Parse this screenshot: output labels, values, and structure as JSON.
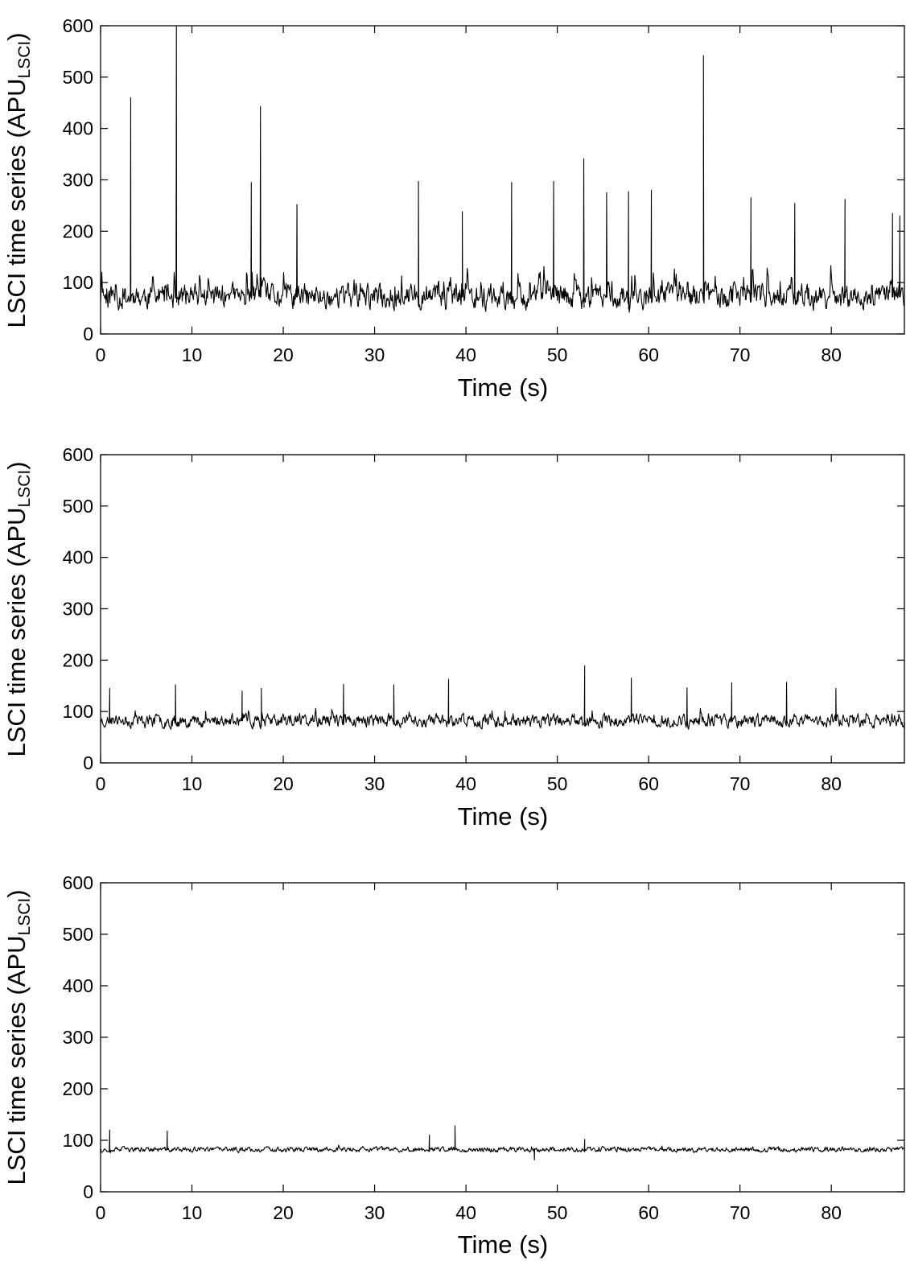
{
  "chart_data": [
    {
      "type": "line",
      "xlabel": "Time (s)",
      "ylabel": {
        "main": "LSCI time series (APU",
        "subscript": "LSCI",
        "close": ")"
      },
      "xlim": [
        0,
        88
      ],
      "ylim": [
        0,
        600
      ],
      "xticks": [
        "0",
        "10",
        "20",
        "30",
        "40",
        "50",
        "60",
        "70",
        "80"
      ],
      "yticks": [
        "0",
        "100",
        "200",
        "300",
        "400",
        "500",
        "600"
      ],
      "grid": false,
      "line_color": "#000000",
      "noise": {
        "baseline": 72,
        "spread": 38,
        "spike_rate": 0.1,
        "spike_size": 75,
        "seed": 11
      },
      "series": [
        {
          "x": [
            3.3,
            8.3,
            16.5,
            17.5,
            21.5,
            34.8,
            39.6,
            45,
            49.6,
            52.9,
            55.4,
            57.8,
            60.3,
            66,
            71.2,
            76,
            81.5,
            86.7,
            87.5
          ],
          "values": [
            460,
            600,
            295,
            443,
            252,
            297,
            238,
            295,
            297,
            341,
            275,
            277,
            280,
            542,
            265,
            254,
            262,
            235,
            230
          ]
        }
      ]
    },
    {
      "type": "line",
      "xlabel": "Time (s)",
      "ylabel": {
        "main": "LSCI time series (APU",
        "subscript": "LSCI",
        "close": ")"
      },
      "xlim": [
        0,
        88
      ],
      "ylim": [
        0,
        600
      ],
      "xticks": [
        "0",
        "10",
        "20",
        "30",
        "40",
        "50",
        "60",
        "70",
        "80"
      ],
      "yticks": [
        "0",
        "100",
        "200",
        "300",
        "400",
        "500",
        "600"
      ],
      "grid": false,
      "line_color": "#000000",
      "noise": {
        "baseline": 82,
        "spread": 20,
        "spike_rate": 0.05,
        "spike_size": 28,
        "seed": 23
      },
      "series": [
        {
          "x": [
            1,
            8.2,
            15.5,
            17.6,
            26.6,
            32.1,
            38.1,
            53,
            58.1,
            64.2,
            69.1,
            75.1,
            80.5
          ],
          "values": [
            145,
            152,
            140,
            145,
            153,
            152,
            163,
            189,
            165,
            146,
            156,
            157,
            145
          ]
        }
      ]
    },
    {
      "type": "line",
      "xlabel": "Time (s)",
      "ylabel": {
        "main": "LSCI time series (APU",
        "subscript": "LSCI",
        "close": ")"
      },
      "xlim": [
        0,
        88
      ],
      "ylim": [
        0,
        600
      ],
      "xticks": [
        "0",
        "10",
        "20",
        "30",
        "40",
        "50",
        "60",
        "70",
        "80"
      ],
      "yticks": [
        "0",
        "100",
        "200",
        "300",
        "400",
        "500",
        "600"
      ],
      "grid": false,
      "line_color": "#000000",
      "noise": {
        "baseline": 82,
        "spread": 8,
        "spike_rate": 0.03,
        "spike_size": 12,
        "seed": 37
      },
      "series": [
        {
          "x": [
            0,
            1,
            7.3,
            36,
            38.8,
            47.5,
            53,
            80
          ],
          "values": [
            75,
            120,
            118,
            110,
            128,
            62,
            102,
            80
          ]
        }
      ]
    }
  ]
}
